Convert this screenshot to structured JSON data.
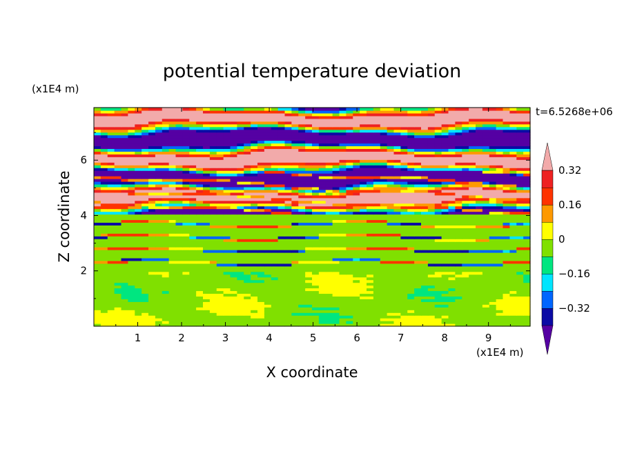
{
  "chart_data": {
    "type": "heatmap",
    "title": "potential temperature deviation",
    "xlabel": "X coordinate",
    "ylabel": "Z coordinate",
    "x_unit": "(x1E4 m)",
    "y_unit": "(x1E4 m)",
    "time_label": "t=6.5268e+06",
    "xlim": [
      0,
      9.95
    ],
    "ylim": [
      0,
      7.9
    ],
    "x_ticks": [
      "1",
      "2",
      "3",
      "4",
      "5",
      "6",
      "7",
      "8",
      "9"
    ],
    "y_ticks": [
      "2",
      "4",
      "6"
    ],
    "grid": false,
    "colorbar": {
      "labels": [
        "0.32",
        "0.16",
        "0",
        "-0.16",
        "-0.32"
      ],
      "levels": [
        -0.4,
        -0.32,
        -0.24,
        -0.16,
        -0.08,
        0,
        0.08,
        0.16,
        0.24,
        0.32,
        0.4
      ],
      "colors": [
        "#5500a3",
        "#0b0ba5",
        "#0066ff",
        "#00e5ff",
        "#00e680",
        "#80e000",
        "#ffff00",
        "#ff9900",
        "#ff3300",
        "#ee2222",
        "#f2aaaa"
      ],
      "under_color": "#5500a3",
      "over_color": "#f2aaaa"
    },
    "bands": [
      {
        "z": [
          0.0,
          2.0
        ],
        "field": "green-yellowgreen mottled",
        "dominant": [
          "#80e000",
          "#00e680"
        ]
      },
      {
        "z": [
          2.0,
          4.0
        ],
        "field": "green layered with thin warm/cold streaks",
        "dominant": [
          "#00e680"
        ]
      },
      {
        "z": [
          4.0,
          5.6
        ],
        "field": "mixed purple and pink with red/yellow streaks",
        "dominant": [
          "#5500a3",
          "#f2aaaa"
        ]
      },
      {
        "z": [
          5.6,
          7.9
        ],
        "field": "alternating purple and pink layers",
        "dominant": [
          "#f2aaaa",
          "#5500a3"
        ]
      }
    ]
  }
}
